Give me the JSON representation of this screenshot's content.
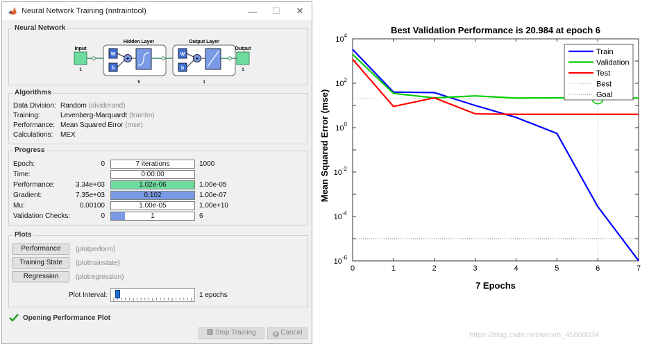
{
  "window": {
    "title": "Neural Network Training (nntraintool)",
    "minimize": "—",
    "maximize": "☐",
    "close": "✕"
  },
  "network": {
    "section": "Neural Network",
    "input_label": "Input",
    "input_size": "1",
    "hidden_label": "Hidden Layer",
    "hidden_size": "5",
    "output_layer_label": "Output Layer",
    "output_layer_size": "1",
    "output_label": "Output",
    "output_size": "1",
    "w": "W",
    "b": "b",
    "plus": "+"
  },
  "algorithms": {
    "section": "Algorithms",
    "rows": [
      {
        "label": "Data Division:",
        "value": "Random",
        "code": "(dividerand)"
      },
      {
        "label": "Training:",
        "value": "Levenberg-Marquardt",
        "code": "(trainlm)"
      },
      {
        "label": "Performance:",
        "value": "Mean Squared Error",
        "code": "(mse)"
      },
      {
        "label": "Calculations:",
        "value": "MEX",
        "code": ""
      }
    ]
  },
  "progress": {
    "section": "Progress",
    "rows": [
      {
        "label": "Epoch:",
        "start": "0",
        "bar": "7 iterations",
        "end": "1000",
        "fill": 0.007,
        "color": "#ffffff"
      },
      {
        "label": "Time:",
        "start": "",
        "bar": "0:00:00",
        "end": "",
        "fill": 0,
        "color": "#ffffff"
      },
      {
        "label": "Performance:",
        "start": "3.34e+03",
        "bar": "1.02e-06",
        "end": "1.00e-05",
        "fill": 1.0,
        "color": "#6fdc9f"
      },
      {
        "label": "Gradient:",
        "start": "7.35e+03",
        "bar": "0.102",
        "end": "1.00e-07",
        "fill": 1.0,
        "color": "#7a9ae6"
      },
      {
        "label": "Mu:",
        "start": "0.00100",
        "bar": "1.00e-05",
        "end": "1.00e+10",
        "fill": 0,
        "color": "#ffffff"
      },
      {
        "label": "Validation Checks:",
        "start": "0",
        "bar": "1",
        "end": "6",
        "fill": 0.17,
        "color": "#7a9ae6"
      }
    ]
  },
  "plots": {
    "section": "Plots",
    "buttons": [
      {
        "label": "Performance",
        "func": "(plotperform)"
      },
      {
        "label": "Training State",
        "func": "(plottrainstate)"
      },
      {
        "label": "Regression",
        "func": "(plotregression)"
      }
    ],
    "interval_label": "Plot Interval:",
    "interval_value": "1 epochs",
    "interval_fill": 0.04
  },
  "status": {
    "check_icon": "check-icon",
    "text": "Opening Performance Plot"
  },
  "footer": {
    "stop": "Stop Training",
    "cancel": "Cancel"
  },
  "watermark": "https://blog.csdn.net/weixin_45800034",
  "colors": {
    "train": "#0000ff",
    "validation": "#00cc00",
    "test": "#ff0000",
    "best": "#99bb99",
    "goal": "#444444"
  },
  "chart_data": {
    "type": "line",
    "title": "Best Validation Performance is 20.984 at epoch 6",
    "xlabel": "7 Epochs",
    "ylabel": "Mean Squared Error  (mse)",
    "xlim": [
      0,
      7
    ],
    "ylim": [
      1e-06,
      10000
    ],
    "yscale": "log",
    "x": [
      0,
      1,
      2,
      3,
      4,
      5,
      6,
      7
    ],
    "x_ticks": [
      "0",
      "1",
      "2",
      "3",
      "4",
      "5",
      "6",
      "7"
    ],
    "y_ticks": [
      {
        "base": "10",
        "exp": "4",
        "value": 10000
      },
      {
        "base": "10",
        "exp": "2",
        "value": 100
      },
      {
        "base": "10",
        "exp": "0",
        "value": 1
      },
      {
        "base": "10",
        "exp": "-2",
        "value": 0.01
      },
      {
        "base": "10",
        "exp": "-4",
        "value": 0.0001
      },
      {
        "base": "10",
        "exp": "-6",
        "value": 1e-06
      }
    ],
    "series": [
      {
        "name": "Train",
        "values": [
          3340,
          40,
          38,
          10,
          2.9,
          0.55,
          0.00028,
          1.02e-06
        ]
      },
      {
        "name": "Validation",
        "values": [
          2000,
          35,
          22,
          27,
          21.5,
          22,
          20.984,
          21.5
        ]
      },
      {
        "name": "Test",
        "values": [
          1200,
          9,
          22,
          4.2,
          4.0,
          4.0,
          4.0,
          4.0
        ]
      }
    ],
    "best": {
      "name": "Best",
      "epoch": 6,
      "value": 20.984
    },
    "goal": {
      "name": "Goal",
      "value": 1e-05
    },
    "legend_position": "top-right",
    "grid": false
  }
}
